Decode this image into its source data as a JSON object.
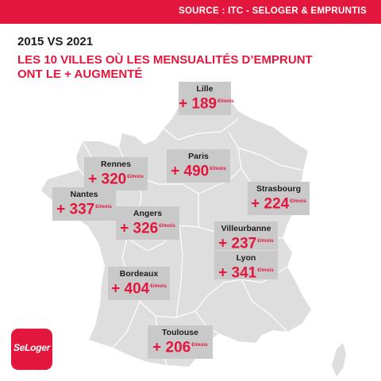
{
  "header": {
    "source": "SOURCE : ITC - SELOGER & EMPRUNTIS"
  },
  "heading": "2015 VS 2021",
  "subtitle_line1": "LES 10 VILLES OÙ LES MENSUALITÉS D’EMPRUNT",
  "subtitle_line2": "ONT LE + AUGMENTÉ",
  "unit": "€/mois",
  "cities": [
    {
      "name": "Lille",
      "value": "+ 189"
    },
    {
      "name": "Paris",
      "value": "+ 490"
    },
    {
      "name": "Rennes",
      "value": "+ 320"
    },
    {
      "name": "Strasbourg",
      "value": "+ 224"
    },
    {
      "name": "Nantes",
      "value": "+ 337"
    },
    {
      "name": "Angers",
      "value": "+ 326"
    },
    {
      "name": "Villeurbanne",
      "value": "+ 237"
    },
    {
      "name": "Lyon",
      "value": "+ 341"
    },
    {
      "name": "Bordeaux",
      "value": "+ 404"
    },
    {
      "name": "Toulouse",
      "value": "+ 206"
    }
  ],
  "logo": {
    "text": "SeLoger"
  },
  "colors": {
    "accent": "#e3173d",
    "map_fill": "#dedede",
    "label_box": "#c9c9c9",
    "region_lines": "#ffffff"
  }
}
